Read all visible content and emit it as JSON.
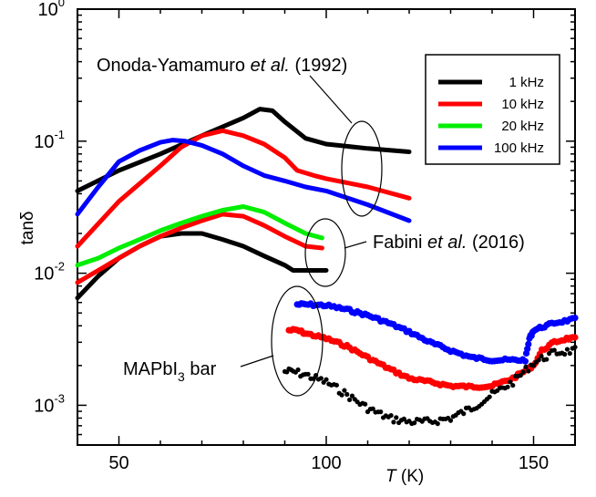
{
  "chart_data": {
    "type": "line",
    "y_scale": "log",
    "xlim": [
      40,
      160
    ],
    "ylim": [
      0.0005,
      1
    ],
    "x_ticks": [
      "50",
      "100",
      "150"
    ],
    "y_ticks": [
      {
        "base": "10",
        "exp": "0"
      },
      {
        "base": "10",
        "exp": "-1"
      },
      {
        "base": "10",
        "exp": "-2"
      },
      {
        "base": "10",
        "exp": "-3"
      }
    ],
    "xlabel": {
      "italic": "T",
      "rest": " (K)"
    },
    "ylabel": "tanδ",
    "legend": {
      "placement": "top-right",
      "entries": [
        {
          "label": "1 kHz",
          "color": "#000000"
        },
        {
          "label": "10 kHz",
          "color": "#ff0000"
        },
        {
          "label": "20 kHz",
          "color": "#00ee00"
        },
        {
          "label": "100 kHz",
          "color": "#0000ff"
        }
      ]
    },
    "annotations": {
      "onoda": {
        "pre": "Onoda-Yamamuro ",
        "italic": "et al.",
        "post": " (1992)"
      },
      "fabini": {
        "pre": "Fabini ",
        "italic": "et al.",
        "post": " (2016)"
      },
      "mapbi": {
        "pre": "MAPbI",
        "sub": "3",
        "post": "  bar"
      }
    },
    "series": [
      {
        "group": "onoda",
        "freq": "1 kHz",
        "color": "#000000",
        "x": [
          40,
          50,
          60,
          70,
          80,
          84,
          87,
          90,
          95,
          100,
          110,
          120
        ],
        "y": [
          0.042,
          0.06,
          0.08,
          0.11,
          0.15,
          0.175,
          0.17,
          0.14,
          0.105,
          0.095,
          0.088,
          0.083
        ]
      },
      {
        "group": "onoda",
        "freq": "10 kHz",
        "color": "#ff0000",
        "x": [
          40,
          50,
          60,
          65,
          70,
          75,
          80,
          85,
          90,
          93,
          97,
          100,
          110,
          120
        ],
        "y": [
          0.016,
          0.035,
          0.065,
          0.09,
          0.11,
          0.12,
          0.11,
          0.095,
          0.075,
          0.06,
          0.055,
          0.052,
          0.045,
          0.037
        ]
      },
      {
        "group": "onoda",
        "freq": "100 kHz",
        "color": "#0000ff",
        "x": [
          40,
          45,
          50,
          55,
          60,
          63,
          66,
          70,
          75,
          80,
          85,
          90,
          95,
          100,
          110,
          120
        ],
        "y": [
          0.028,
          0.045,
          0.07,
          0.085,
          0.098,
          0.102,
          0.1,
          0.093,
          0.08,
          0.065,
          0.055,
          0.05,
          0.045,
          0.042,
          0.033,
          0.025
        ]
      },
      {
        "group": "fabini",
        "freq": "1 kHz",
        "color": "#000000",
        "x": [
          40,
          45,
          50,
          55,
          60,
          65,
          70,
          75,
          80,
          85,
          90,
          92,
          95,
          100
        ],
        "y": [
          0.0065,
          0.0095,
          0.013,
          0.016,
          0.019,
          0.02,
          0.02,
          0.018,
          0.016,
          0.0135,
          0.0115,
          0.0105,
          0.0105,
          0.0105
        ]
      },
      {
        "group": "fabini",
        "freq": "10 kHz",
        "color": "#ff0000",
        "x": [
          40,
          45,
          50,
          55,
          60,
          65,
          70,
          75,
          80,
          85,
          90,
          95,
          99
        ],
        "y": [
          0.0085,
          0.0105,
          0.013,
          0.016,
          0.019,
          0.022,
          0.025,
          0.028,
          0.027,
          0.023,
          0.019,
          0.016,
          0.0155
        ]
      },
      {
        "group": "fabini",
        "freq": "20 kHz",
        "color": "#00ee00",
        "x": [
          40,
          45,
          50,
          55,
          60,
          65,
          70,
          75,
          80,
          85,
          90,
          95,
          99
        ],
        "y": [
          0.0115,
          0.013,
          0.0155,
          0.018,
          0.021,
          0.024,
          0.027,
          0.03,
          0.032,
          0.029,
          0.024,
          0.02,
          0.0185
        ]
      },
      {
        "group": "mapbi",
        "freq": "100 kHz",
        "color": "#0000ff",
        "x": [
          93,
          95,
          100,
          105,
          110,
          115,
          120,
          125,
          130,
          135,
          140,
          145,
          148,
          149,
          150,
          152,
          155,
          160
        ],
        "y": [
          0.0058,
          0.0058,
          0.0057,
          0.0053,
          0.0048,
          0.0042,
          0.0036,
          0.003,
          0.0026,
          0.0023,
          0.0022,
          0.0022,
          0.0022,
          0.0032,
          0.0037,
          0.0039,
          0.0042,
          0.0045
        ]
      },
      {
        "group": "mapbi",
        "freq": "10 kHz",
        "color": "#ff0000",
        "x": [
          91,
          93,
          95,
          100,
          105,
          110,
          115,
          120,
          125,
          130,
          135,
          140,
          145,
          150,
          152,
          155,
          158,
          160
        ],
        "y": [
          0.0037,
          0.0037,
          0.0035,
          0.0032,
          0.0028,
          0.0023,
          0.0019,
          0.0016,
          0.0015,
          0.0014,
          0.00138,
          0.0014,
          0.0016,
          0.002,
          0.0026,
          0.003,
          0.0032,
          0.0032
        ]
      },
      {
        "group": "mapbi",
        "freq": "1 kHz",
        "color": "#000000",
        "x": [
          90,
          92,
          95,
          100,
          105,
          110,
          115,
          120,
          125,
          130,
          135,
          140,
          145,
          150,
          155,
          160
        ],
        "y": [
          0.0018,
          0.0018,
          0.0017,
          0.0015,
          0.0012,
          0.00095,
          0.0008,
          0.00075,
          0.00075,
          0.0008,
          0.00095,
          0.0012,
          0.0015,
          0.0021,
          0.0025,
          0.0026
        ]
      }
    ]
  }
}
